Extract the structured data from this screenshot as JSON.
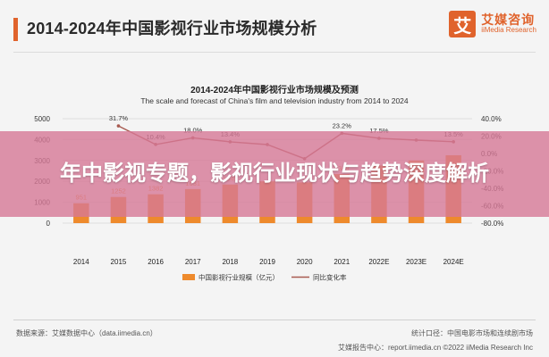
{
  "header": {
    "title": "2014-2024年中国影视行业市场规模分析",
    "logo": {
      "cn": "艾媒咨询",
      "en": "iiMedia Research",
      "mark": "艾"
    }
  },
  "banner": {
    "text": "年中影视专题，影视行业现状与趋势深度解析"
  },
  "footer": {
    "source": "数据来源：艾媒数据中心（data.iimedia.cn）",
    "stats": "统计口径：中国电影市场和连续剧市场",
    "copyright": "艾媒报告中心：report.iimedia.cn ©2022  iiMedia Research Inc"
  },
  "colors": {
    "bar": "#ee8a2c",
    "line": "#a85a50",
    "accent": "#e0632c"
  },
  "chart_data": {
    "type": "bar",
    "title": "2014-2024年中国影视行业市场规模及预测",
    "subtitle": "The scale and forecast of China's film and television industry from 2014 to 2024",
    "categories": [
      "2014",
      "2015",
      "2016",
      "2017",
      "2018",
      "2019",
      "2020",
      "2021",
      "2022E",
      "2023E",
      "2024E"
    ],
    "series": [
      {
        "name": "中国影视行业规模（亿元）",
        "type": "bar",
        "axis": "left",
        "values": [
          951,
          1252,
          1382,
          1631,
          1849,
          2000,
          1950,
          2349,
          2760,
          3000,
          3250
        ],
        "labels": [
          "951",
          "1252",
          "1382",
          "1631",
          "1849",
          "",
          "",
          "2349",
          "",
          "",
          ""
        ]
      },
      {
        "name": "同比变化率",
        "type": "line",
        "axis": "right",
        "values": [
          null,
          31.7,
          10.4,
          18.0,
          13.4,
          10.3,
          -6.0,
          23.2,
          17.5,
          15.4,
          13.5
        ],
        "labels": [
          "",
          "31.7%",
          "10.4%",
          "18.0%",
          "13.4%",
          "",
          "",
          "23.2%",
          "17.5%",
          "",
          "13.5%"
        ]
      }
    ],
    "left_axis": {
      "ylim": [
        0,
        5000
      ],
      "ticks": [
        "0",
        "1000",
        "2000",
        "3000",
        "4000",
        "5000"
      ]
    },
    "right_axis": {
      "ylim": [
        -80,
        40
      ],
      "ticks": [
        "-80.0%",
        "-60.0%",
        "-40.0%",
        "-20.0%",
        "0.0%",
        "20.0%",
        "40.0%"
      ]
    },
    "legend_position": "bottom"
  }
}
